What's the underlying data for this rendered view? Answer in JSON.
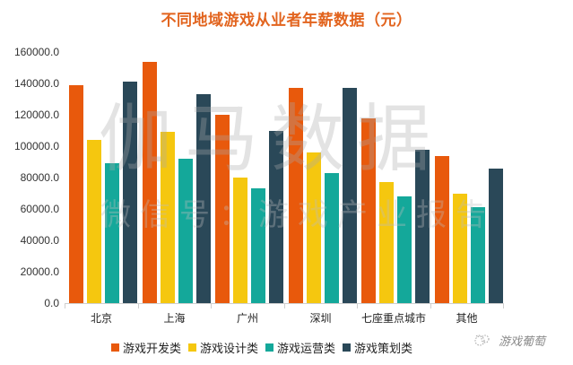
{
  "title": "不同地域游戏从业者年薪数据（元）",
  "watermark": {
    "main": "伽马数据",
    "sub": "微信号：游戏产业报告",
    "logo_text": "游戏葡萄"
  },
  "colors": {
    "title": "#E2641E",
    "series": [
      "#E8590C",
      "#F5C70F",
      "#14A89A",
      "#2A4858"
    ]
  },
  "y_ticks": [
    "160000.0",
    "140000.0",
    "120000.0",
    "100000.0",
    "80000.0",
    "60000.0",
    "40000.0",
    "20000.0",
    "0.0"
  ],
  "chart_data": {
    "type": "bar",
    "title": "不同地域游戏从业者年薪数据（元）",
    "xlabel": "",
    "ylabel": "",
    "ylim": [
      0,
      160000
    ],
    "grid": false,
    "legend_position": "bottom",
    "categories": [
      "北京",
      "上海",
      "广州",
      "深圳",
      "七座重点城市",
      "其他"
    ],
    "series": [
      {
        "name": "游戏开发类",
        "color": "#E8590C",
        "values": [
          139000,
          154000,
          120000,
          137000,
          118000,
          94000
        ]
      },
      {
        "name": "游戏设计类",
        "color": "#F5C70F",
        "values": [
          104000,
          109000,
          80000,
          96000,
          77000,
          70000
        ]
      },
      {
        "name": "游戏运营类",
        "color": "#14A89A",
        "values": [
          89000,
          92000,
          73000,
          83000,
          68000,
          61000
        ]
      },
      {
        "name": "游戏策划类",
        "color": "#2A4858",
        "values": [
          141000,
          133000,
          110000,
          137000,
          98000,
          86000
        ]
      }
    ]
  }
}
